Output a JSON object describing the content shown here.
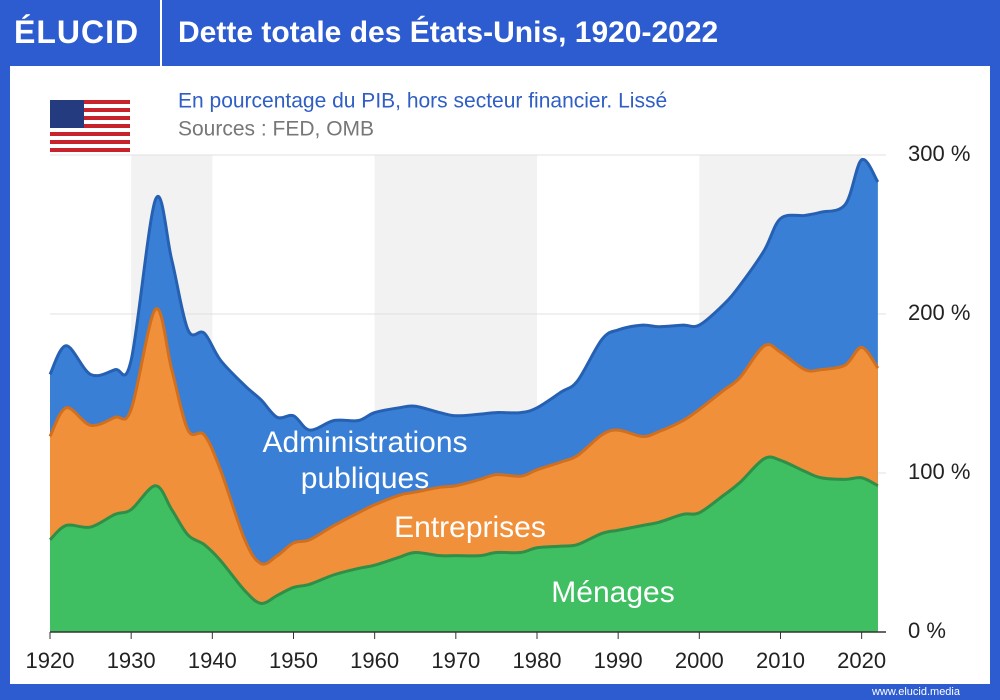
{
  "header": {
    "logo": "ÉLUCID",
    "title": "Dette totale des États-Unis, 1920-2022"
  },
  "chart_data": {
    "type": "stacked_area",
    "subtitle": "En pourcentage du PIB, hors secteur financier. Lissé",
    "source": "Sources : FED, OMB",
    "x": [
      1920,
      1922,
      1925,
      1928,
      1930,
      1933,
      1935,
      1937,
      1939,
      1941,
      1944,
      1946,
      1948,
      1950,
      1952,
      1955,
      1958,
      1960,
      1963,
      1965,
      1968,
      1970,
      1973,
      1975,
      1978,
      1980,
      1983,
      1985,
      1988,
      1990,
      1993,
      1995,
      1998,
      2000,
      2003,
      2005,
      2008,
      2010,
      2013,
      2015,
      2018,
      2020,
      2022
    ],
    "series": [
      {
        "name": "Ménages",
        "color": "#3fbf62",
        "stroke": "#2f8e47",
        "values": [
          58,
          67,
          66,
          74,
          77,
          92,
          77,
          61,
          55,
          45,
          26,
          18,
          23,
          28,
          30,
          36,
          40,
          42,
          47,
          50,
          48,
          48,
          48,
          50,
          50,
          53,
          54,
          55,
          62,
          64,
          67,
          69,
          74,
          75,
          86,
          94,
          109,
          108,
          101,
          97,
          96,
          97,
          92
        ]
      },
      {
        "name": "Entreprises",
        "color": "#f0903b",
        "stroke": "#d26f1d",
        "values": [
          65,
          74,
          64,
          61,
          63,
          111,
          88,
          66,
          69,
          57,
          32,
          25,
          25,
          28,
          28,
          31,
          35,
          38,
          39,
          38,
          43,
          44,
          48,
          49,
          48,
          49,
          53,
          56,
          62,
          63,
          56,
          57,
          59,
          65,
          66,
          66,
          71,
          68,
          64,
          68,
          72,
          82,
          74
        ]
      },
      {
        "name": "Administrations publiques",
        "color": "#3a7fd6",
        "stroke": "#2660b2",
        "values": [
          39,
          39,
          32,
          30,
          31,
          69,
          69,
          63,
          64,
          69,
          97,
          103,
          87,
          80,
          69,
          66,
          58,
          58,
          55,
          54,
          47,
          44,
          41,
          39,
          40,
          39,
          44,
          47,
          60,
          63,
          70,
          66,
          60,
          53,
          54,
          58,
          60,
          84,
          97,
          99,
          101,
          118,
          117
        ]
      }
    ],
    "xlim": [
      1920,
      2023
    ],
    "xticks": [
      1920,
      1930,
      1940,
      1950,
      1960,
      1970,
      1980,
      1990,
      2000,
      2010,
      2020
    ],
    "ylim": [
      0,
      300
    ],
    "yticks": [
      {
        "value": 0,
        "label": "0 %"
      },
      {
        "value": 100,
        "label": "100 %"
      },
      {
        "value": 200,
        "label": "200 %"
      },
      {
        "value": 300,
        "label": "300 %"
      }
    ],
    "grid": true
  },
  "footer": {
    "url": "www.elucid.media"
  }
}
